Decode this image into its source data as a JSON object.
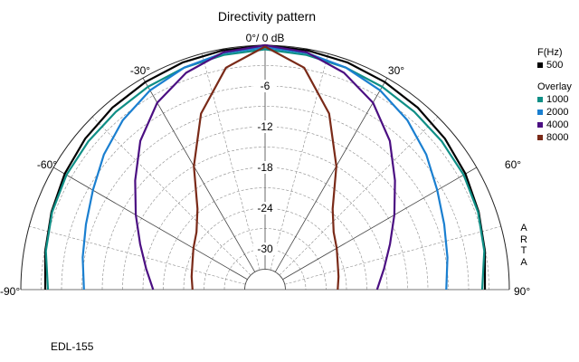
{
  "chart_data": {
    "type": "polar",
    "title": "Directivity pattern",
    "center_label": "0°/ 0 dB",
    "angle_labels": [
      {
        "angle": -90,
        "text": "-90°"
      },
      {
        "angle": -60,
        "text": "-60°"
      },
      {
        "angle": -30,
        "text": "-30°"
      },
      {
        "angle": 30,
        "text": "30°"
      },
      {
        "angle": 60,
        "text": "60°"
      },
      {
        "angle": 90,
        "text": "90°"
      }
    ],
    "radial_ticks": [
      {
        "db": -6,
        "text": "-6"
      },
      {
        "db": -12,
        "text": "-12"
      },
      {
        "db": -18,
        "text": "-18"
      },
      {
        "db": -24,
        "text": "-24"
      },
      {
        "db": -30,
        "text": "-30"
      }
    ],
    "rlim": [
      -36,
      0
    ],
    "grid": true,
    "angles": [
      0,
      10,
      20,
      30,
      40,
      50,
      60,
      70,
      80,
      90
    ],
    "series": [
      {
        "name": "500",
        "color": "#000000",
        "db": [
          0,
          -0.2,
          -0.4,
          -0.7,
          -1.0,
          -1.4,
          -1.9,
          -2.5,
          -3.1,
          -3.6
        ]
      },
      {
        "name": "1000",
        "color": "#0f8f86",
        "db": [
          -0.6,
          -0.9,
          -1.2,
          -1.5,
          -1.8,
          -2.0,
          -2.2,
          -2.6,
          -3.2,
          -4.0
        ]
      },
      {
        "name": "2000",
        "color": "#1a7fd0",
        "db": [
          -0.3,
          -0.6,
          -1.2,
          -2.1,
          -3.4,
          -5.0,
          -6.7,
          -7.9,
          -8.7,
          -9.3
        ]
      },
      {
        "name": "4000",
        "color": "#4b0f82",
        "db": [
          0,
          -0.5,
          -2.0,
          -4.2,
          -7.4,
          -11.0,
          -14.0,
          -16.4,
          -18.2,
          -19.5
        ]
      },
      {
        "name": "8000",
        "color": "#7a2a18",
        "db": [
          -0.2,
          -2.8,
          -8.4,
          -15.0,
          -20.5,
          -22.8,
          -23.8,
          -24.6,
          -25.0,
          -25.3
        ]
      }
    ],
    "legend": {
      "placement": "right",
      "primary_header": "F(Hz)",
      "overlay_header": "Overlay"
    }
  },
  "brand": [
    "A",
    "R",
    "T",
    "A"
  ],
  "footer": "EDL-155"
}
